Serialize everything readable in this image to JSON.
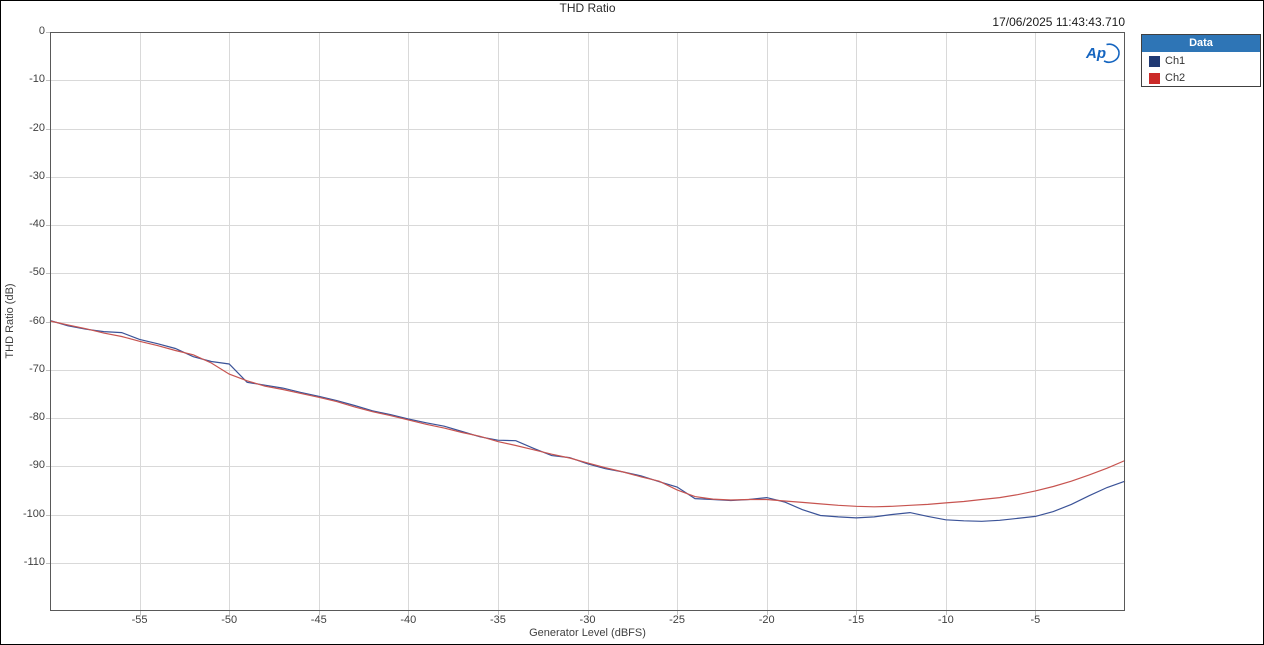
{
  "title": "THD Ratio",
  "timestamp": "17/06/2025 11:43:43.710",
  "legend": {
    "header": "Data",
    "items": [
      {
        "label": "Ch1",
        "color": "#1f3973"
      },
      {
        "label": "Ch2",
        "color": "#cb2a28"
      }
    ]
  },
  "colors": {
    "grid": "#d9d9d9",
    "plot_border": "#595959",
    "tick_stub": "#c0c0c0",
    "legend_header_bg": "#2e75b6",
    "ch1_line": "#3b5398",
    "ch2_line": "#c75450",
    "logo_blue": "#1565c0"
  },
  "chart_data": {
    "type": "line",
    "title": "THD Ratio",
    "xlabel": "Generator Level (dBFS)",
    "ylabel": "THD Ratio (dB)",
    "xlim": [
      -60,
      0
    ],
    "ylim": [
      -120,
      0
    ],
    "x_ticks": [
      -55,
      -50,
      -45,
      -40,
      -35,
      -30,
      -25,
      -20,
      -15,
      -10,
      -5
    ],
    "y_ticks": [
      0,
      -10,
      -20,
      -30,
      -40,
      -50,
      -60,
      -70,
      -80,
      -90,
      -100,
      -110
    ],
    "grid": true,
    "legend_position": "outside-top-right",
    "x": [
      -60,
      -59,
      -58,
      -57,
      -56,
      -55,
      -54,
      -53,
      -52,
      -51,
      -50,
      -49,
      -48,
      -47,
      -46,
      -45,
      -44,
      -43,
      -42,
      -41,
      -40,
      -39,
      -38,
      -37,
      -36,
      -35,
      -34,
      -33,
      -32,
      -31,
      -30,
      -29,
      -28,
      -27,
      -26,
      -25,
      -24,
      -23,
      -22,
      -21,
      -20,
      -19,
      -18,
      -17,
      -16,
      -15,
      -14,
      -13,
      -12,
      -11,
      -10,
      -9,
      -8,
      -7,
      -6,
      -5,
      -4,
      -3,
      -2,
      -1,
      0
    ],
    "series": [
      {
        "name": "Ch1",
        "color": "#3b5398",
        "values": [
          -59.8,
          -60.9,
          -61.6,
          -62.1,
          -62.3,
          -63.7,
          -64.6,
          -65.6,
          -67.3,
          -68.3,
          -68.8,
          -72.6,
          -73.2,
          -73.8,
          -74.7,
          -75.5,
          -76.4,
          -77.4,
          -78.5,
          -79.3,
          -80.2,
          -81.0,
          -81.7,
          -82.8,
          -83.9,
          -84.6,
          -84.7,
          -86.3,
          -87.8,
          -88.2,
          -89.5,
          -90.5,
          -91.2,
          -92.0,
          -93.2,
          -94.3,
          -96.7,
          -96.9,
          -97.1,
          -96.9,
          -96.5,
          -97.4,
          -99.0,
          -100.2,
          -100.5,
          -100.7,
          -100.5,
          -100.0,
          -99.6,
          -100.4,
          -101.1,
          -101.3,
          -101.4,
          -101.2,
          -100.8,
          -100.4,
          -99.4,
          -97.9,
          -96.1,
          -94.4,
          -93.1
        ]
      },
      {
        "name": "Ch2",
        "color": "#c75450",
        "values": [
          -59.9,
          -60.7,
          -61.5,
          -62.4,
          -63.1,
          -64.1,
          -65.0,
          -66.0,
          -66.9,
          -68.6,
          -70.9,
          -72.3,
          -73.4,
          -74.1,
          -74.9,
          -75.7,
          -76.6,
          -77.7,
          -78.7,
          -79.5,
          -80.4,
          -81.3,
          -82.1,
          -83.0,
          -83.8,
          -84.9,
          -85.7,
          -86.6,
          -87.5,
          -88.3,
          -89.3,
          -90.3,
          -91.2,
          -92.2,
          -93.1,
          -94.9,
          -96.3,
          -96.8,
          -97.0,
          -96.9,
          -96.9,
          -97.2,
          -97.5,
          -97.8,
          -98.1,
          -98.3,
          -98.4,
          -98.3,
          -98.1,
          -97.9,
          -97.6,
          -97.3,
          -96.9,
          -96.5,
          -95.9,
          -95.1,
          -94.2,
          -93.1,
          -91.8,
          -90.4,
          -88.8
        ]
      }
    ]
  }
}
